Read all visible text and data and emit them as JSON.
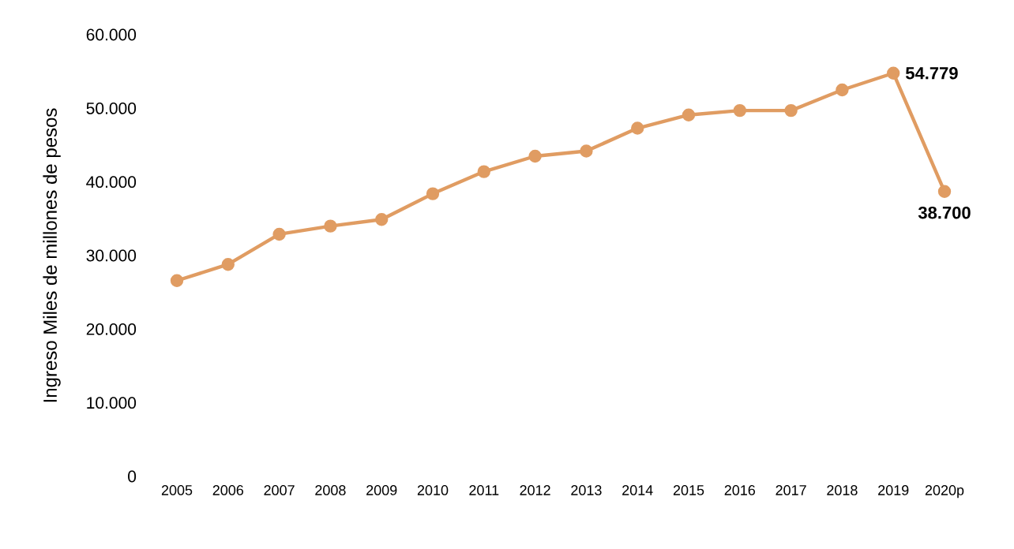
{
  "chart_data": {
    "type": "line",
    "ylabel": "Ingreso Miles de millones de pesos",
    "categories": [
      "2005",
      "2006",
      "2007",
      "2008",
      "2009",
      "2010",
      "2011",
      "2012",
      "2013",
      "2014",
      "2015",
      "2016",
      "2017",
      "2018",
      "2019",
      "2020p"
    ],
    "series": [
      {
        "color": "#e09c62",
        "values": [
          26600,
          28800,
          32900,
          34000,
          34900,
          38400,
          41400,
          43500,
          44200,
          47300,
          49100,
          49700,
          49700,
          52500,
          54779,
          38700
        ],
        "value_labels": [
          null,
          null,
          null,
          null,
          null,
          null,
          null,
          null,
          null,
          null,
          null,
          null,
          null,
          null,
          "54.779",
          "38.700"
        ]
      }
    ],
    "ylim": [
      0,
      60000
    ],
    "yticks": [
      0,
      {
        "value": 10000,
        "label": "10.000"
      },
      {
        "value": 20000,
        "label": "20.000"
      },
      {
        "value": 30000,
        "label": "30.000"
      },
      {
        "value": 40000,
        "label": "40.000"
      },
      {
        "value": 50000,
        "label": "50.000"
      },
      {
        "value": 60000,
        "label": "60.000"
      }
    ],
    "marker": "circle",
    "line_style": "solid"
  }
}
